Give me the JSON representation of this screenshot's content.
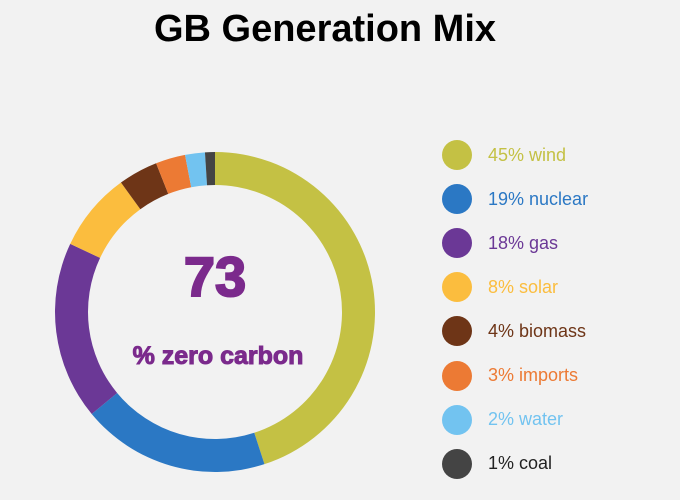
{
  "chart_data": {
    "type": "pie",
    "title": "GB Generation Mix",
    "center_value": "73",
    "center_label": "% zero carbon",
    "categories": [
      "wind",
      "nuclear",
      "gas",
      "solar",
      "biomass",
      "imports",
      "water",
      "coal"
    ],
    "values": [
      45,
      19,
      18,
      8,
      4,
      3,
      2,
      1
    ],
    "colors": [
      "#c4c144",
      "#2b78c4",
      "#6b3896",
      "#fbbd3e",
      "#6e3517",
      "#ec7a34",
      "#72c3f0",
      "#444444"
    ],
    "legend_labels": [
      "45% wind",
      "19% nuclear",
      "18% gas",
      "8% solar",
      "4% biomass",
      "3% imports",
      "2% water",
      "1% coal"
    ],
    "legend_position": "right"
  }
}
